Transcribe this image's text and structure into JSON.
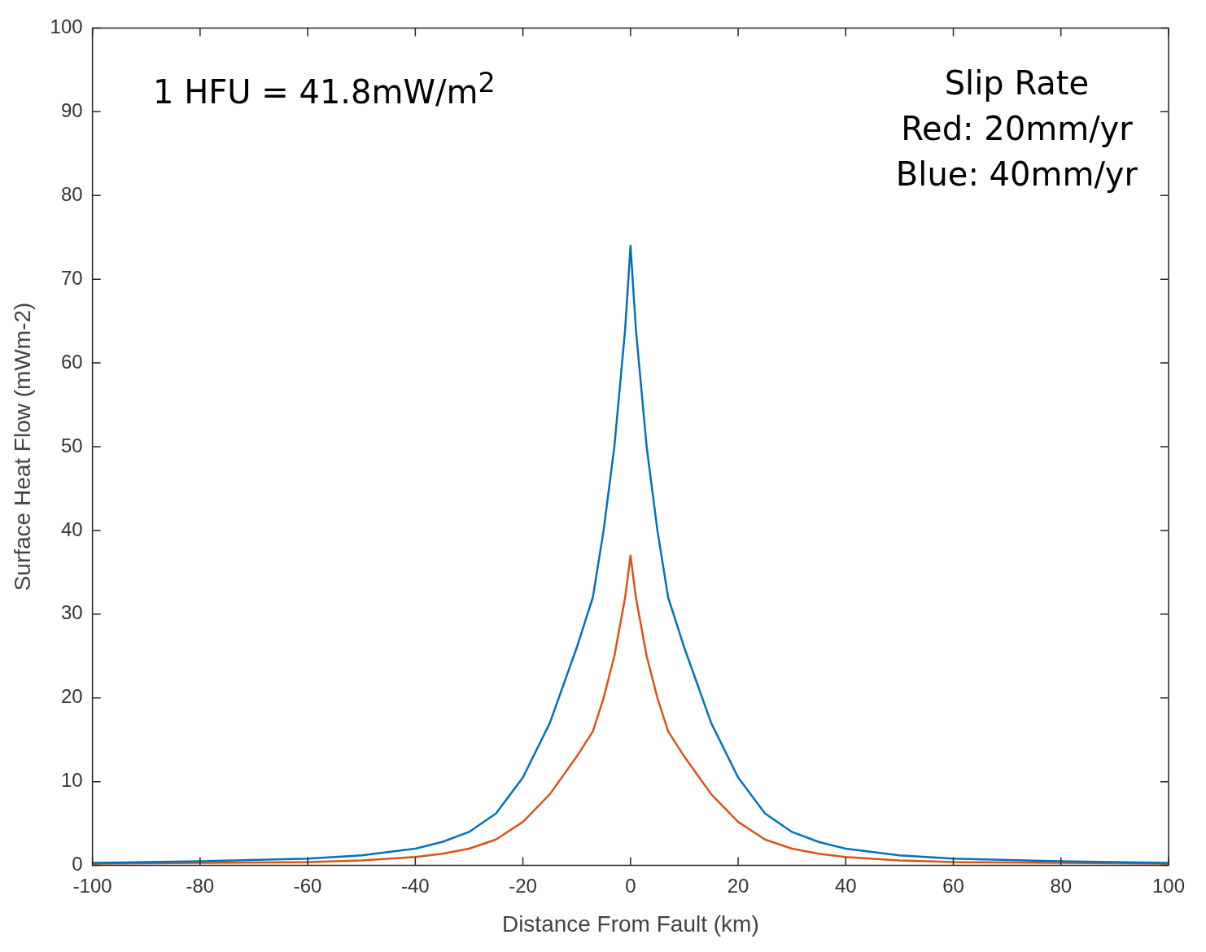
{
  "chart_data": {
    "type": "line",
    "xlabel": "Distance From Fault (km)",
    "ylabel": "Surface Heat Flow (mWm-2)",
    "x": [
      -100,
      -80,
      -60,
      -50,
      -40,
      -35,
      -30,
      -25,
      -20,
      -15,
      -10,
      -7,
      -5,
      -3,
      -1,
      0,
      1,
      3,
      5,
      7,
      10,
      15,
      20,
      25,
      30,
      35,
      40,
      50,
      60,
      80,
      100
    ],
    "series": [
      {
        "color": "#0072bd",
        "values": [
          0.3,
          0.5,
          0.8,
          1.2,
          2.0,
          2.8,
          4.0,
          6.2,
          10.5,
          17,
          26,
          32,
          40,
          50,
          64,
          74,
          64,
          50,
          40,
          32,
          26,
          17,
          10.5,
          6.2,
          4.0,
          2.8,
          2.0,
          1.2,
          0.8,
          0.5,
          0.3
        ]
      },
      {
        "color": "#d95319",
        "values": [
          0.2,
          0.3,
          0.4,
          0.6,
          1.0,
          1.4,
          2.0,
          3.1,
          5.2,
          8.5,
          13,
          16,
          20,
          25,
          32,
          37,
          32,
          25,
          20,
          16,
          13,
          8.5,
          5.2,
          3.1,
          2.0,
          1.4,
          1.0,
          0.6,
          0.4,
          0.3,
          0.2
        ]
      }
    ],
    "xlim": [
      -100,
      100
    ],
    "xticks": [
      -100,
      -80,
      -60,
      -40,
      -20,
      0,
      20,
      40,
      60,
      80,
      100
    ],
    "ylim": [
      0,
      100
    ],
    "yticks": [
      0,
      10,
      20,
      30,
      40,
      50,
      60,
      70,
      80,
      90,
      100
    ],
    "grid": false,
    "legend": false,
    "marker": "none",
    "line_style": "solid",
    "annotations": [
      "1 HFU = 41.8mW/m$^{2}$",
      "Slip Rate",
      "Red: 20mm/yr",
      "Blue: 40mm/yr"
    ]
  }
}
